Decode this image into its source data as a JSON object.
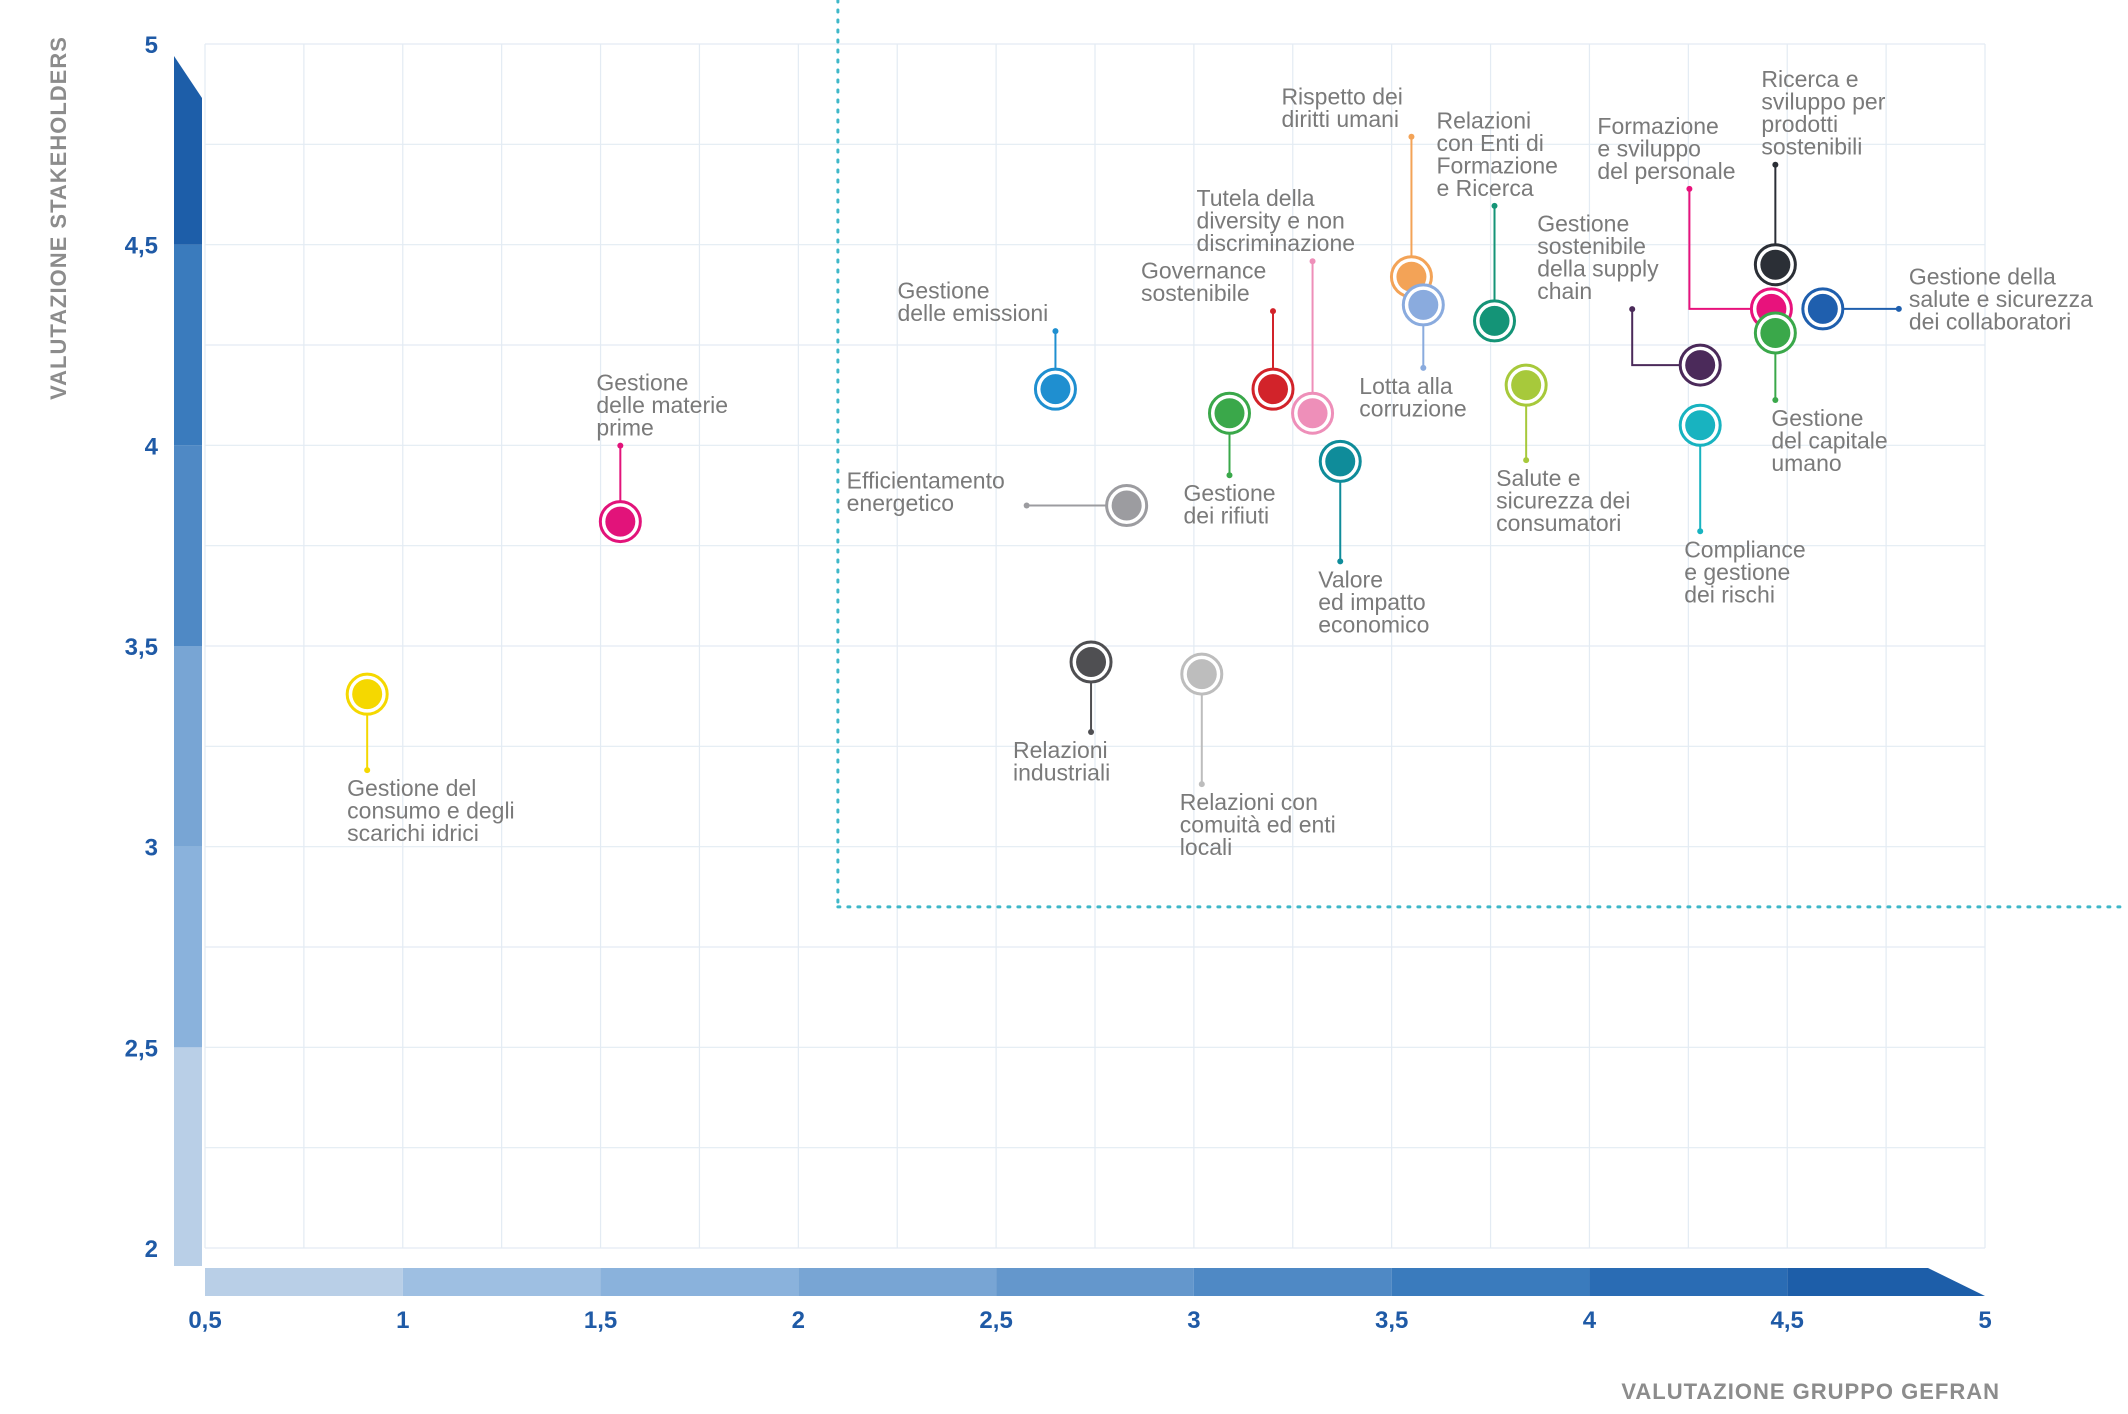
{
  "chart_data": {
    "type": "scatter",
    "xlabel": "VALUTAZIONE GRUPPO GEFRAN",
    "ylabel": "VALUTAZIONE STAKEHOLDERS",
    "xlim": [
      0.5,
      5
    ],
    "ylim": [
      2,
      5
    ],
    "x_ticks": [
      "0,5",
      "1",
      "1,5",
      "2",
      "2,5",
      "3",
      "3,5",
      "4",
      "4,5",
      "5"
    ],
    "y_ticks": [
      "2",
      "2,5",
      "3",
      "3,5",
      "4",
      "4,5",
      "5"
    ],
    "grid": true,
    "threshold": {
      "x": 2.1,
      "y": 2.85
    },
    "points": [
      {
        "name": "Gestione del consumo e degli scarichi idrici",
        "lines": [
          "Gestione del",
          "consumo e degli",
          "scarichi idrici"
        ],
        "x": 0.91,
        "y": 3.38,
        "color": "#f5d800"
      },
      {
        "name": "Gestione delle materie prime",
        "lines": [
          "Gestione",
          "delle materie",
          "prime"
        ],
        "x": 1.55,
        "y": 3.81,
        "color": "#e2137a"
      },
      {
        "name": "Gestione delle emissioni",
        "lines": [
          "Gestione",
          "delle emissioni"
        ],
        "x": 2.65,
        "y": 4.14,
        "color": "#1f8fd0"
      },
      {
        "name": "Efficientamento energetico",
        "lines": [
          "Efficientamento",
          "energetico"
        ],
        "x": 2.83,
        "y": 3.85,
        "color": "#9c9ca0"
      },
      {
        "name": "Relazioni industriali",
        "lines": [
          "Relazioni",
          "industriali"
        ],
        "x": 2.74,
        "y": 3.46,
        "color": "#4f4f52"
      },
      {
        "name": "Relazioni con comuità ed enti locali",
        "lines": [
          "Relazioni con",
          "comuità ed enti",
          "locali"
        ],
        "x": 3.02,
        "y": 3.43,
        "color": "#bdbdbd"
      },
      {
        "name": "Gestione dei rifiuti",
        "lines": [
          "Gestione",
          "dei rifiuti"
        ],
        "x": 3.09,
        "y": 4.08,
        "color": "#3aa84a"
      },
      {
        "name": "Governance sostenibile",
        "lines": [
          "Governance",
          "sostenibile"
        ],
        "x": 3.2,
        "y": 4.14,
        "color": "#d2232a"
      },
      {
        "name": "Tutela della diversity e non discriminazione",
        "lines": [
          "Tutela della",
          "diversity e non",
          "discriminazione"
        ],
        "x": 3.3,
        "y": 4.08,
        "color": "#ee8fb9"
      },
      {
        "name": "Valore ed impatto economico",
        "lines": [
          "Valore",
          "ed impatto",
          "economico"
        ],
        "x": 3.37,
        "y": 3.96,
        "color": "#0f8c9a"
      },
      {
        "name": "Rispetto dei diritti umani",
        "lines": [
          "Rispetto dei",
          "diritti umani"
        ],
        "x": 3.55,
        "y": 4.42,
        "color": "#f3a357"
      },
      {
        "name": "Lotta alla corruzione",
        "lines": [
          "Lotta alla",
          "corruzione"
        ],
        "x": 3.58,
        "y": 4.35,
        "color": "#8aabde"
      },
      {
        "name": "Relazioni con Enti di Formazione e Ricerca",
        "lines": [
          "Relazioni",
          "con Enti di",
          "Formazione",
          "e Ricerca"
        ],
        "x": 3.76,
        "y": 4.31,
        "color": "#149477"
      },
      {
        "name": "Salute e sicurezza dei consumatori",
        "lines": [
          "Salute e",
          "sicurezza dei",
          "consumatori"
        ],
        "x": 3.84,
        "y": 4.15,
        "color": "#a7c93b"
      },
      {
        "name": "Gestione sostenibile della supply chain",
        "lines": [
          "Gestione",
          "sostenibile",
          "della supply",
          "chain"
        ],
        "x": 4.28,
        "y": 4.2,
        "color": "#4b2a5a"
      },
      {
        "name": "Compliance e gestione dei rischi",
        "lines": [
          "Compliance",
          "e gestione",
          "dei rischi"
        ],
        "x": 4.28,
        "y": 4.05,
        "color": "#18b3c0"
      },
      {
        "name": "Ricerca e sviluppo per prodotti sostenibili",
        "lines": [
          "Ricerca e",
          "sviluppo per",
          "prodotti",
          "sostenibili"
        ],
        "x": 4.47,
        "y": 4.45,
        "color": "#2b2f36"
      },
      {
        "name": "Formazione e sviluppo del personale",
        "lines": [
          "Formazione",
          "e sviluppo",
          "del personale"
        ],
        "x": 4.46,
        "y": 4.34,
        "color": "#e8127c"
      },
      {
        "name": "Gestione del capitale umano",
        "lines": [
          "Gestione",
          "del capitale",
          "umano"
        ],
        "x": 4.47,
        "y": 4.28,
        "color": "#3aa84a"
      },
      {
        "name": "Gestione della salute e sicurezza dei collaboratori",
        "lines": [
          "Gestione della",
          "salute e sicurezza",
          "dei collaboratori"
        ],
        "x": 4.59,
        "y": 4.34,
        "color": "#1f5fae"
      }
    ]
  }
}
